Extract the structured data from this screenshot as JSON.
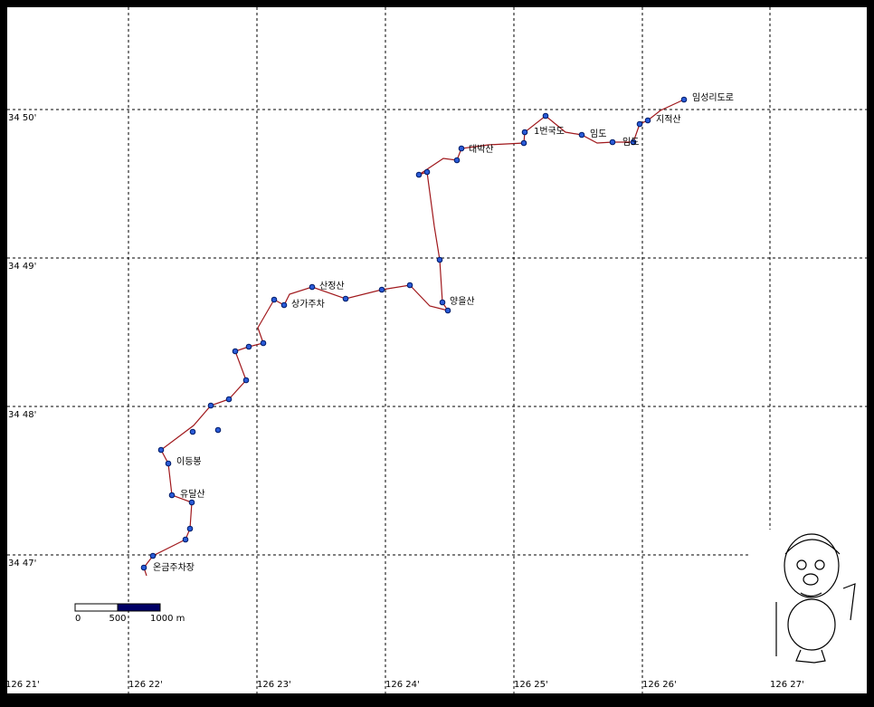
{
  "map": {
    "longitude_labels": [
      "126 21'",
      "126 22'",
      "126 23'",
      "126 24'",
      "126 25'",
      "126 26'",
      "126 27'"
    ],
    "latitude_labels": [
      "34 50'",
      "34 49'",
      "34 48'",
      "34 47'"
    ],
    "waypoint_labels": [
      "임성리도로",
      "지적산",
      "1번국도",
      "임도",
      "임도",
      "대박산",
      "양을산",
      "산정산",
      "상가주차",
      "이등봉",
      "유달산",
      "온금주차장"
    ],
    "scale_labels": [
      "0",
      "500",
      "1000 m"
    ]
  }
}
